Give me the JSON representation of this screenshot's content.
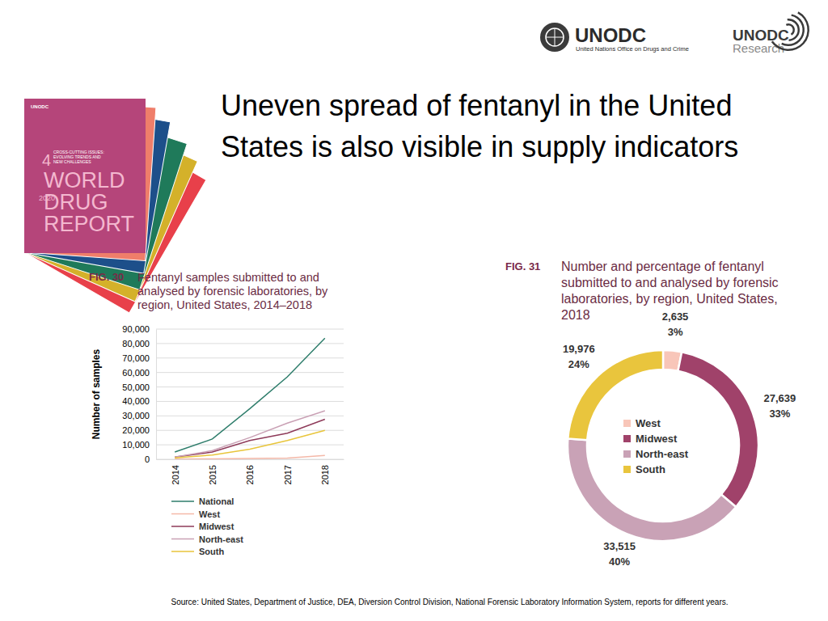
{
  "page": {
    "title": [
      "Uneven spread of fentanyl in the United",
      "States is also visible in supply indicators"
    ],
    "source": "Source: United States, Department of Justice, DEA, Diversion Control Division, National Forensic Laboratory Information System, reports for different years.",
    "logo": {
      "name": "UNODC",
      "subtitle": "United Nations Office on Drugs and Crime"
    },
    "research_logo": {
      "name": "UNODC",
      "subtitle": "Research"
    },
    "cover": {
      "logo": "UNODC",
      "section": "4",
      "section_title": [
        "CROSS-CUTTING ISSUES:",
        "EVOLVING TRENDS AND",
        "NEW CHALLENGES"
      ],
      "year": "2020",
      "title": [
        "WORLD",
        "DRUG",
        "REPORT"
      ]
    }
  },
  "chart_data": [
    {
      "type": "line",
      "figure": "FIG. 30",
      "title": [
        "Fentanyl samples submitted to and",
        "analysed by forensic laboratories, by",
        "region, United States, 2014–2018"
      ],
      "y_label": "Number of samples",
      "categories": [
        "2014",
        "2015",
        "2016",
        "2017",
        "2018"
      ],
      "series": [
        {
          "name": "National",
          "color": "#2e7d6b",
          "values": [
            5000,
            14000,
            35000,
            57000,
            83765
          ]
        },
        {
          "name": "West",
          "color": "#f4b8a8",
          "values": [
            200,
            300,
            500,
            800,
            2635
          ]
        },
        {
          "name": "Midwest",
          "color": "#8e3a59",
          "values": [
            1500,
            5000,
            13000,
            18000,
            27639
          ]
        },
        {
          "name": "North-east",
          "color": "#c9a0b4",
          "values": [
            1500,
            6000,
            15000,
            25000,
            33515
          ]
        },
        {
          "name": "South",
          "color": "#e8c53a",
          "values": [
            1000,
            3000,
            7000,
            13000,
            19976
          ]
        }
      ],
      "ylim": [
        0,
        90000
      ],
      "yticks": [
        0,
        {
          "value": 10000,
          "label": "10,000"
        },
        {
          "value": 20000,
          "label": "20,000"
        },
        {
          "value": 30000,
          "label": "30,000"
        },
        {
          "value": 40000,
          "label": "40,000"
        },
        {
          "value": 50000,
          "label": "50,000"
        },
        {
          "value": 60000,
          "label": "60,000"
        },
        {
          "value": 70000,
          "label": "70,000"
        },
        {
          "value": 80000,
          "label": "80,000"
        },
        {
          "value": 90000,
          "label": "90,000"
        }
      ],
      "grid": true,
      "legend": "bottom"
    },
    {
      "type": "donut",
      "figure": "FIG. 31",
      "title": [
        "Number and percentage of fentanyl",
        "submitted to and analysed by forensic",
        "laboratories, by region, United States,",
        "2018"
      ],
      "categories": [
        "West",
        "Midwest",
        "North-east",
        "South"
      ],
      "values": [
        2635,
        27639,
        33515,
        19976
      ],
      "value_labels": [
        "2,635",
        "27,639",
        "33,515",
        "19,976"
      ],
      "percent_labels": [
        "3%",
        "33%",
        "40%",
        "24%"
      ],
      "colors": [
        "#f8c6b9",
        "#a0426a",
        "#c9a2b6",
        "#e9c53d"
      ],
      "data_labels": true,
      "legend": "center"
    }
  ]
}
